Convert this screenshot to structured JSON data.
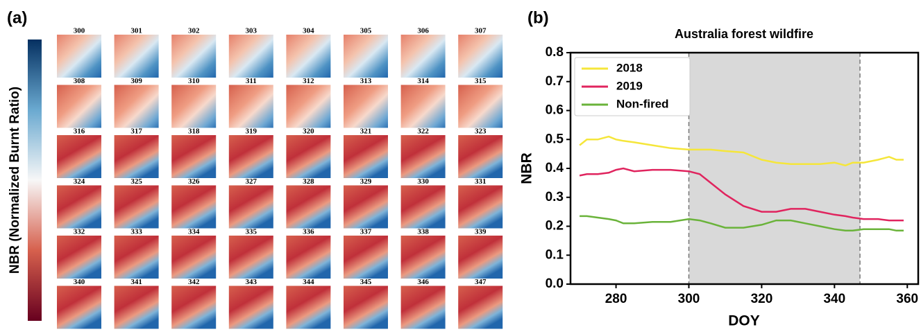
{
  "chart_data": [
    {
      "type": "image-grid",
      "panel_label": "(a)",
      "colorbar_label": "NBR (Normalized Burnt Ratio)",
      "labels": [
        300,
        301,
        302,
        303,
        304,
        305,
        306,
        307,
        308,
        309,
        310,
        311,
        312,
        313,
        314,
        315,
        316,
        317,
        318,
        319,
        320,
        321,
        322,
        323,
        324,
        325,
        326,
        327,
        328,
        329,
        330,
        331,
        332,
        333,
        334,
        335,
        336,
        337,
        338,
        339,
        340,
        341,
        342,
        343,
        344,
        345,
        346,
        347
      ]
    },
    {
      "type": "line",
      "panel_label": "(b)",
      "title": "Australia forest wildfire",
      "x_label": "DOY",
      "y_label": "NBR",
      "x": [
        270,
        272,
        275,
        278,
        280,
        282,
        285,
        290,
        295,
        300,
        303,
        306,
        310,
        315,
        320,
        324,
        328,
        332,
        336,
        340,
        343,
        345,
        348,
        352,
        355,
        357,
        359
      ],
      "xlim": [
        267.5,
        363
      ],
      "xticks": [
        280,
        300,
        320,
        340,
        360
      ],
      "ylim": [
        0,
        0.8
      ],
      "yticks": [
        {
          "value": 0,
          "label": "0.0"
        },
        0.1,
        0.2,
        0.3,
        0.4,
        0.5,
        0.6,
        0.7,
        0.8
      ],
      "shaded_span": [
        300,
        347
      ],
      "legend": "upper left",
      "series": [
        {
          "name": "2018",
          "color": "#f5e63a",
          "values": [
            0.48,
            0.5,
            0.5,
            0.51,
            0.5,
            0.495,
            0.49,
            0.48,
            0.47,
            0.465,
            0.465,
            0.465,
            0.46,
            0.455,
            0.43,
            0.42,
            0.415,
            0.415,
            0.415,
            0.42,
            0.41,
            0.42,
            0.42,
            0.43,
            0.44,
            0.43,
            0.43
          ]
        },
        {
          "name": "2019",
          "color": "#e0245e",
          "values": [
            0.375,
            0.38,
            0.38,
            0.385,
            0.395,
            0.4,
            0.39,
            0.395,
            0.395,
            0.39,
            0.38,
            0.35,
            0.31,
            0.27,
            0.25,
            0.25,
            0.26,
            0.26,
            0.25,
            0.24,
            0.235,
            0.23,
            0.225,
            0.225,
            0.22,
            0.22,
            0.22
          ]
        },
        {
          "name": "Non-fired",
          "color": "#6ab33a",
          "values": [
            0.235,
            0.235,
            0.23,
            0.225,
            0.22,
            0.21,
            0.21,
            0.215,
            0.215,
            0.225,
            0.22,
            0.21,
            0.195,
            0.195,
            0.205,
            0.22,
            0.22,
            0.21,
            0.2,
            0.19,
            0.185,
            0.185,
            0.19,
            0.19,
            0.19,
            0.185,
            0.185
          ]
        }
      ]
    }
  ]
}
